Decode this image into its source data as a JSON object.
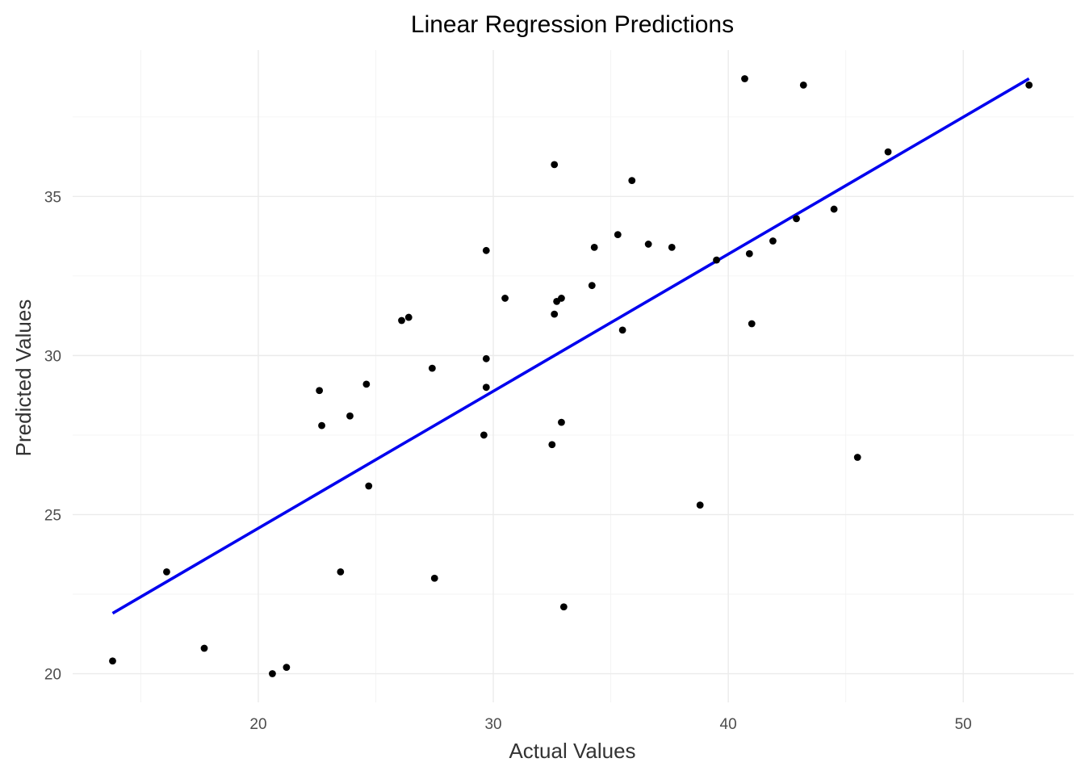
{
  "chart_data": {
    "type": "scatter",
    "title": "Linear Regression Predictions",
    "xlabel": "Actual Values",
    "ylabel": "Predicted Values",
    "xlim": [
      12.1,
      54.7
    ],
    "ylim": [
      19.1,
      39.6
    ],
    "x_ticks": [
      20,
      30,
      40,
      50
    ],
    "x_tick_labels": [
      "20",
      "30",
      "40",
      "50"
    ],
    "y_ticks": [
      20,
      25,
      30,
      35
    ],
    "y_tick_labels": [
      "20",
      "25",
      "30",
      "35"
    ],
    "grid": true,
    "legend": "none",
    "series": [
      {
        "points": [
          [
            13.8,
            20.4
          ],
          [
            16.1,
            23.2
          ],
          [
            17.7,
            20.8
          ],
          [
            20.6,
            20.0
          ],
          [
            21.2,
            20.2
          ],
          [
            22.6,
            28.9
          ],
          [
            22.7,
            27.8
          ],
          [
            23.5,
            23.2
          ],
          [
            23.9,
            28.1
          ],
          [
            24.6,
            29.1
          ],
          [
            24.7,
            25.9
          ],
          [
            26.1,
            31.1
          ],
          [
            26.4,
            31.2
          ],
          [
            27.4,
            29.6
          ],
          [
            27.5,
            23.0
          ],
          [
            29.6,
            27.5
          ],
          [
            29.7,
            29.9
          ],
          [
            29.7,
            29.0
          ],
          [
            29.7,
            33.3
          ],
          [
            30.5,
            31.8
          ],
          [
            32.5,
            27.2
          ],
          [
            32.6,
            31.3
          ],
          [
            32.6,
            36.0
          ],
          [
            32.7,
            31.7
          ],
          [
            32.9,
            31.8
          ],
          [
            32.9,
            27.9
          ],
          [
            33.0,
            22.1
          ],
          [
            34.2,
            32.2
          ],
          [
            34.3,
            33.4
          ],
          [
            35.3,
            33.8
          ],
          [
            35.5,
            30.8
          ],
          [
            35.9,
            35.5
          ],
          [
            36.6,
            33.5
          ],
          [
            37.6,
            33.4
          ],
          [
            38.8,
            25.3
          ],
          [
            39.5,
            33.0
          ],
          [
            40.7,
            38.7
          ],
          [
            40.9,
            33.2
          ],
          [
            41.0,
            31.0
          ],
          [
            41.9,
            33.6
          ],
          [
            42.9,
            34.3
          ],
          [
            43.2,
            38.5
          ],
          [
            44.5,
            34.6
          ],
          [
            45.5,
            26.8
          ],
          [
            46.8,
            36.4
          ],
          [
            52.8,
            38.5
          ]
        ],
        "color": "#000000"
      }
    ],
    "regression_line": {
      "x": [
        13.8,
        52.8
      ],
      "y": [
        21.9,
        38.7
      ],
      "color": "#0000EE"
    }
  }
}
